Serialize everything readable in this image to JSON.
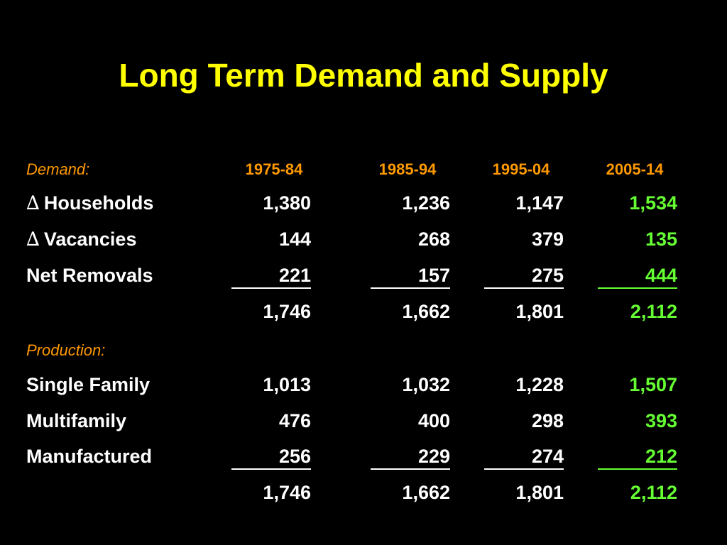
{
  "slide": {
    "title": "Long Term Demand and Supply"
  },
  "demand": {
    "section_label": "Demand:",
    "periods": [
      "1975-84",
      "1985-94",
      "1995-04",
      "2005-14"
    ],
    "rows": [
      {
        "symbol": "∆",
        "label": "Households",
        "values": [
          "1,380",
          "1,236",
          "1,147",
          "1,534"
        ]
      },
      {
        "symbol": "∆",
        "label": "Vacancies",
        "values": [
          "144",
          "268",
          "379",
          "135"
        ]
      },
      {
        "label": "Net Removals",
        "values": [
          "221",
          "157",
          "275",
          "444"
        ]
      }
    ],
    "totals": [
      "1,746",
      "1,662",
      "1,801",
      "2,112"
    ]
  },
  "production": {
    "section_label": "Production:",
    "rows": [
      {
        "label": "Single Family",
        "values": [
          "1,013",
          "1,032",
          "1,228",
          "1,507"
        ]
      },
      {
        "label": "Multifamily",
        "values": [
          "476",
          "400",
          "298",
          "393"
        ]
      },
      {
        "label": "Manufactured",
        "values": [
          "256",
          "229",
          "274",
          "212"
        ]
      }
    ],
    "totals": [
      "1,746",
      "1,662",
      "1,801",
      "2,112"
    ]
  },
  "colors": {
    "background": "#000000",
    "title": "#FFFF00",
    "section_and_years": "#FF9900",
    "text": "#FFFFFF",
    "projection": "#66FF33"
  }
}
